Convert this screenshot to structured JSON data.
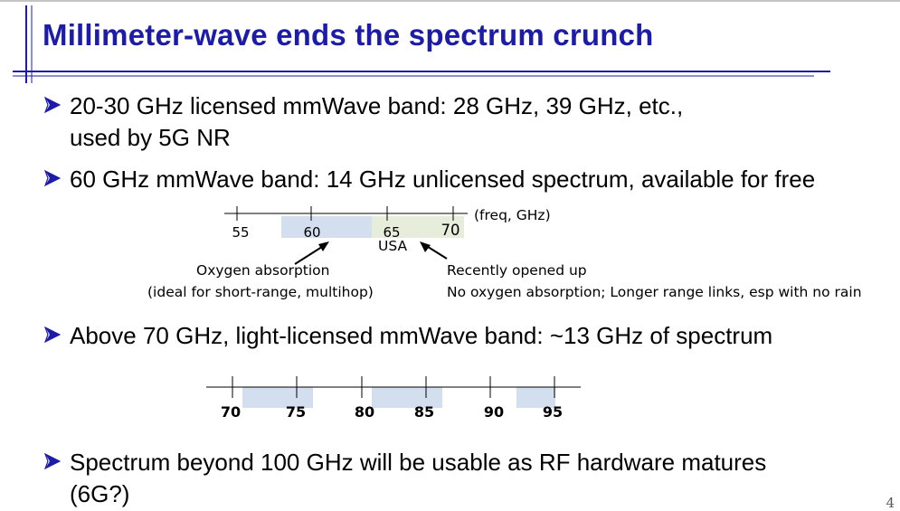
{
  "slide": {
    "title": "Millimeter-wave ends the spectrum crunch",
    "bullets": [
      {
        "line1": "20-30 GHz licensed mmWave band: 28 GHz, 39 GHz, etc.,",
        "line2": "used by 5G NR"
      },
      {
        "line1": "60 GHz mmWave band: 14 GHz unlicensed spectrum, available for free"
      },
      {
        "line1": "Above 70 GHz, light-licensed mmWave band: ~13 GHz of spectrum"
      },
      {
        "line1": "Spectrum beyond 100 GHz will be usable as RF hardware matures",
        "line2": "(6G?)"
      }
    ],
    "page_number": "4"
  },
  "band60": {
    "unit_label": "(freq, GHz)",
    "ticks": [
      "55",
      "60",
      "65",
      "70"
    ],
    "region_label": "USA",
    "left_note": {
      "line1": "Oxygen absorption",
      "line2": "(ideal for short-range, multihop)"
    },
    "right_note": {
      "line1": "Recently opened up",
      "line2": "No oxygen absorption; Longer range links, esp with no rain"
    },
    "colors": {
      "blue_band": "#d3deee",
      "green_band": "#e6eedb"
    }
  },
  "band70": {
    "ticks": [
      "70",
      "75",
      "80",
      "85",
      "90",
      "95"
    ],
    "colors": {
      "band": "#d3deee"
    }
  },
  "colors": {
    "title": "#1c1ca8",
    "rule": "#1c1ca8"
  }
}
